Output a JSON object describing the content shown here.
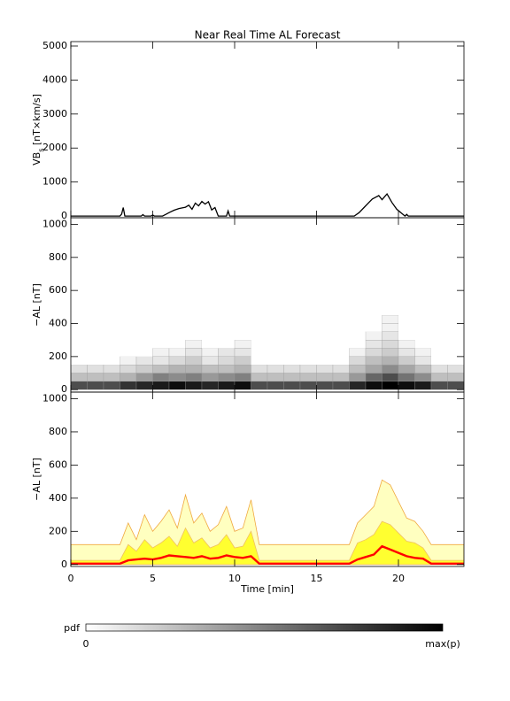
{
  "chart_data": [
    {
      "type": "line",
      "title": "Near Real Time AL Forecast",
      "ylabel": [
        "VB",
        "s",
        " [nT×km/s]"
      ],
      "x": [
        0,
        3.0,
        3.1,
        3.2,
        3.3,
        4.3,
        4.4,
        4.5,
        4.9,
        5.0,
        5.1,
        5.6,
        5.8,
        6.0,
        6.3,
        6.6,
        7.0,
        7.2,
        7.4,
        7.6,
        7.8,
        8.0,
        8.2,
        8.4,
        8.6,
        8.8,
        9.0,
        9.5,
        9.6,
        9.7,
        17.3,
        17.6,
        17.9,
        18.2,
        18.4,
        18.6,
        18.8,
        19.0,
        19.3,
        19.6,
        19.9,
        20.4,
        20.5,
        20.6,
        24
      ],
      "values": [
        0,
        0,
        60,
        250,
        0,
        0,
        40,
        0,
        0,
        30,
        0,
        0,
        50,
        100,
        170,
        220,
        260,
        320,
        200,
        380,
        300,
        430,
        350,
        420,
        180,
        250,
        0,
        0,
        150,
        0,
        0,
        100,
        250,
        400,
        500,
        550,
        600,
        480,
        650,
        400,
        200,
        0,
        50,
        0,
        0
      ],
      "color": "#000000",
      "xlim": [
        0,
        24
      ],
      "xticks": [
        0,
        5,
        10,
        15,
        20
      ],
      "ylim": [
        -50,
        5130
      ],
      "yticks": [
        0,
        1000,
        2000,
        3000,
        4000,
        5000
      ]
    },
    {
      "type": "heatmap",
      "ylabel": "−AL [nT]",
      "x_edges": [
        0,
        1,
        2,
        3,
        4,
        5,
        6,
        7,
        8,
        9,
        10,
        11,
        12,
        13,
        14,
        15,
        16,
        17,
        18,
        19,
        20,
        21,
        22,
        23,
        24
      ],
      "y_edges": [
        0,
        50,
        100,
        150,
        200,
        250,
        300,
        350,
        400,
        450,
        500
      ],
      "z": [
        [
          0.7,
          0.25,
          0.12,
          0,
          0,
          0,
          0,
          0,
          0,
          0
        ],
        [
          0.7,
          0.25,
          0.12,
          0,
          0,
          0,
          0,
          0,
          0,
          0
        ],
        [
          0.7,
          0.25,
          0.12,
          0,
          0,
          0,
          0,
          0,
          0,
          0
        ],
        [
          0.8,
          0.3,
          0.15,
          0.05,
          0,
          0,
          0,
          0,
          0,
          0
        ],
        [
          0.85,
          0.4,
          0.2,
          0.1,
          0,
          0,
          0,
          0,
          0,
          0
        ],
        [
          0.9,
          0.5,
          0.25,
          0.1,
          0.05,
          0,
          0,
          0,
          0,
          0
        ],
        [
          0.95,
          0.45,
          0.3,
          0.15,
          0.05,
          0,
          0,
          0,
          0,
          0
        ],
        [
          0.9,
          0.5,
          0.3,
          0.2,
          0.1,
          0.05,
          0,
          0,
          0,
          0
        ],
        [
          0.85,
          0.4,
          0.25,
          0.1,
          0.05,
          0,
          0,
          0,
          0,
          0
        ],
        [
          0.9,
          0.45,
          0.25,
          0.15,
          0.1,
          0,
          0,
          0,
          0,
          0
        ],
        [
          0.95,
          0.5,
          0.3,
          0.2,
          0.1,
          0.05,
          0,
          0,
          0,
          0
        ],
        [
          0.7,
          0.25,
          0.12,
          0,
          0,
          0,
          0,
          0,
          0,
          0
        ],
        [
          0.7,
          0.25,
          0.12,
          0,
          0,
          0,
          0,
          0,
          0,
          0
        ],
        [
          0.7,
          0.25,
          0.12,
          0,
          0,
          0,
          0,
          0,
          0,
          0
        ],
        [
          0.7,
          0.25,
          0.12,
          0,
          0,
          0,
          0,
          0,
          0,
          0
        ],
        [
          0.7,
          0.25,
          0.12,
          0,
          0,
          0,
          0,
          0,
          0,
          0
        ],
        [
          0.7,
          0.25,
          0.12,
          0,
          0,
          0,
          0,
          0,
          0,
          0
        ],
        [
          0.85,
          0.4,
          0.25,
          0.15,
          0.05,
          0,
          0,
          0,
          0,
          0
        ],
        [
          0.95,
          0.6,
          0.35,
          0.25,
          0.15,
          0.1,
          0.05,
          0,
          0,
          0
        ],
        [
          1,
          0.7,
          0.45,
          0.3,
          0.2,
          0.15,
          0.1,
          0.05,
          0.05,
          0
        ],
        [
          0.95,
          0.55,
          0.35,
          0.2,
          0.1,
          0.05,
          0,
          0,
          0,
          0
        ],
        [
          0.9,
          0.45,
          0.25,
          0.1,
          0.05,
          0,
          0,
          0,
          0,
          0
        ],
        [
          0.7,
          0.25,
          0.12,
          0,
          0,
          0,
          0,
          0,
          0,
          0
        ],
        [
          0.7,
          0.25,
          0.12,
          0,
          0,
          0,
          0,
          0,
          0,
          0
        ]
      ],
      "xlim": [
        0,
        24
      ],
      "xticks": [
        0,
        5,
        10,
        15,
        20
      ],
      "ylim": [
        -15,
        1040
      ],
      "yticks": [
        0,
        200,
        400,
        600,
        800,
        1000
      ]
    },
    {
      "type": "area",
      "ylabel": "−AL [nT]",
      "xlabel": "Time [min]",
      "x": [
        0,
        0.5,
        1,
        1.5,
        2,
        2.5,
        3,
        3.5,
        4,
        4.5,
        5,
        5.5,
        6,
        6.5,
        7,
        7.5,
        8,
        8.5,
        9,
        9.5,
        10,
        10.5,
        11,
        11.5,
        12,
        12.5,
        13,
        13.5,
        14,
        14.5,
        15,
        15.5,
        16,
        16.5,
        17,
        17.5,
        18,
        18.5,
        19,
        19.5,
        20,
        20.5,
        21,
        21.5,
        22,
        22.5,
        23,
        23.5,
        24
      ],
      "series": [
        {
          "color": "#ffffc0",
          "edge": "#f0a840",
          "values": [
            120,
            120,
            120,
            120,
            120,
            120,
            120,
            250,
            150,
            300,
            200,
            260,
            330,
            220,
            420,
            250,
            310,
            200,
            240,
            350,
            200,
            220,
            390,
            120,
            120,
            120,
            120,
            120,
            120,
            120,
            120,
            120,
            120,
            120,
            120,
            250,
            300,
            350,
            510,
            480,
            380,
            280,
            260,
            200,
            120,
            120,
            120,
            120,
            120
          ]
        },
        {
          "color": "#ffff30",
          "edge": "#f0c060",
          "values": [
            25,
            25,
            25,
            25,
            25,
            25,
            25,
            120,
            80,
            150,
            100,
            130,
            170,
            110,
            220,
            130,
            160,
            100,
            120,
            180,
            100,
            110,
            200,
            25,
            25,
            25,
            25,
            25,
            25,
            25,
            25,
            25,
            25,
            25,
            25,
            130,
            150,
            180,
            260,
            240,
            190,
            140,
            130,
            100,
            25,
            25,
            25,
            25,
            25
          ]
        },
        {
          "color": "#ff0000",
          "values": [
            5,
            5,
            5,
            5,
            5,
            5,
            5,
            25,
            30,
            35,
            30,
            40,
            55,
            50,
            45,
            40,
            50,
            35,
            40,
            55,
            45,
            40,
            50,
            5,
            5,
            5,
            5,
            5,
            5,
            5,
            5,
            5,
            5,
            5,
            5,
            30,
            45,
            60,
            110,
            90,
            70,
            50,
            40,
            35,
            5,
            5,
            5,
            5,
            5
          ]
        }
      ],
      "xlim": [
        0,
        24
      ],
      "xticks": [
        0,
        5,
        10,
        15,
        20
      ],
      "ylim": [
        -12,
        1040
      ],
      "yticks": [
        0,
        200,
        400,
        600,
        800,
        1000
      ]
    }
  ],
  "colorbar": {
    "label": "pdf",
    "min_label": "0",
    "max_label": "max(p)",
    "colors": [
      "#ffffff",
      "#000000"
    ]
  }
}
